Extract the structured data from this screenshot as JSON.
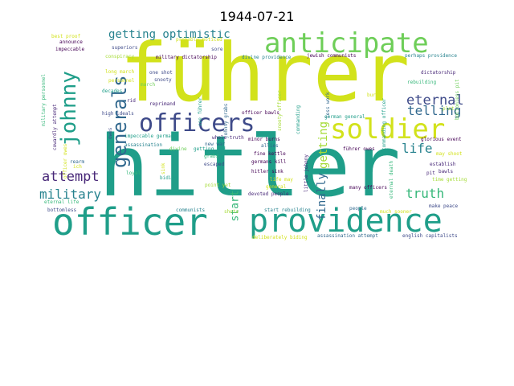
{
  "title": "1944-07-21",
  "colors": {
    "yellow": "#d2e21b",
    "lime": "#a5db36",
    "green": "#6ece58",
    "teal": "#35b779",
    "seagreen": "#1f9e89",
    "cyan": "#26828e",
    "blue": "#31688e",
    "indigo": "#3e4a89",
    "purple": "#482878",
    "dark": "#440154"
  },
  "words": [
    {
      "text": "hitler",
      "color": "seagreen"
    },
    {
      "text": "führer",
      "color": "yellow"
    },
    {
      "text": "officer",
      "color": "seagreen"
    },
    {
      "text": "providence",
      "color": "seagreen"
    },
    {
      "text": "anticipate",
      "color": "green"
    },
    {
      "text": "officers",
      "color": "indigo"
    },
    {
      "text": "soldier",
      "color": "yellow"
    },
    {
      "text": "johnny",
      "color": "seagreen"
    },
    {
      "text": "generals",
      "color": "blue"
    },
    {
      "text": "getting optimistic",
      "color": "cyan"
    },
    {
      "text": "eternal",
      "color": "indigo"
    },
    {
      "text": "telling",
      "color": "blue"
    },
    {
      "text": "life",
      "color": "cyan"
    },
    {
      "text": "truth",
      "color": "teal"
    },
    {
      "text": "attempt",
      "color": "purple"
    },
    {
      "text": "military",
      "color": "cyan"
    },
    {
      "text": "finally",
      "color": "blue"
    },
    {
      "text": "getting",
      "color": "lime"
    },
    {
      "text": "start",
      "color": "teal"
    },
    {
      "text": "best proof",
      "color": "yellow"
    },
    {
      "text": "probably noticed",
      "color": "yellow"
    },
    {
      "text": "impeccable",
      "color": "dark"
    },
    {
      "text": "superiors",
      "color": "indigo"
    },
    {
      "text": "conspiracy",
      "color": "lime"
    },
    {
      "text": "military dictatorship",
      "color": "dark"
    },
    {
      "text": "divine providence",
      "color": "cyan"
    },
    {
      "text": "jewish communists",
      "color": "dark"
    },
    {
      "text": "perhaps providence",
      "color": "cyan"
    },
    {
      "text": "one shot",
      "color": "indigo"
    },
    {
      "text": "snooty",
      "color": "indigo"
    },
    {
      "text": "long march",
      "color": "yellow"
    },
    {
      "text": "personnel",
      "color": "yellow"
    },
    {
      "text": "decades",
      "color": "seagreen"
    },
    {
      "text": "rid",
      "color": "purple"
    },
    {
      "text": "reprimand",
      "color": "purple"
    },
    {
      "text": "high ideals",
      "color": "indigo"
    },
    {
      "text": "officer bawls",
      "color": "dark"
    },
    {
      "text": "whole truth",
      "color": "purple"
    },
    {
      "text": "minor burns",
      "color": "dark"
    },
    {
      "text": "impeccable germans",
      "color": "seagreen"
    },
    {
      "text": "assassination",
      "color": "cyan"
    },
    {
      "text": "divine",
      "color": "green"
    },
    {
      "text": "getting rid",
      "color": "seagreen"
    },
    {
      "text": "allies",
      "color": "blue"
    },
    {
      "text": "fine kettle",
      "color": "dark"
    },
    {
      "text": "germans kill",
      "color": "dark"
    },
    {
      "text": "new war",
      "color": "blue"
    },
    {
      "text": "grabs",
      "color": "teal"
    },
    {
      "text": "escaped",
      "color": "indigo"
    },
    {
      "text": "loyal",
      "color": "teal"
    },
    {
      "text": "biding",
      "color": "seagreen"
    },
    {
      "text": "hitler sink",
      "color": "dark"
    },
    {
      "text": "devoted people",
      "color": "purple"
    },
    {
      "text": "point yet",
      "color": "lime"
    },
    {
      "text": "general",
      "color": "yellow"
    },
    {
      "text": "start rebuilding",
      "color": "cyan"
    },
    {
      "text": "communists",
      "color": "cyan"
    },
    {
      "text": "shots",
      "color": "lime"
    },
    {
      "text": "deliberately biding",
      "color": "yellow"
    },
    {
      "text": "assassination attempt",
      "color": "blue"
    },
    {
      "text": "english capitalists",
      "color": "indigo"
    },
    {
      "text": "make peace",
      "color": "indigo"
    },
    {
      "text": "much sooner",
      "color": "yellow"
    },
    {
      "text": "bottomless",
      "color": "indigo"
    },
    {
      "text": "eternal life",
      "color": "teal"
    },
    {
      "text": "announce",
      "color": "dark"
    },
    {
      "text": "rearm",
      "color": "blue"
    },
    {
      "text": "german general",
      "color": "seagreen"
    },
    {
      "text": "führer owes",
      "color": "dark"
    },
    {
      "text": "many officers",
      "color": "dark"
    },
    {
      "text": "little johnny",
      "color": "purple"
    },
    {
      "text": "may shoot",
      "color": "yellow"
    },
    {
      "text": "establish",
      "color": "purple"
    },
    {
      "text": "time getting",
      "color": "lime"
    },
    {
      "text": "bawls",
      "color": "purple"
    },
    {
      "text": "pit",
      "color": "purple"
    },
    {
      "text": "glorious event",
      "color": "dark"
    },
    {
      "text": "dictatorship",
      "color": "purple"
    },
    {
      "text": "rebuilding",
      "color": "teal"
    },
    {
      "text": "burns",
      "color": "yellow"
    },
    {
      "text": "less work",
      "color": "blue"
    },
    {
      "text": "commanding",
      "color": "seagreen"
    },
    {
      "text": "commanding officer",
      "color": "seagreen"
    },
    {
      "text": "eternal death",
      "color": "teal"
    },
    {
      "text": "snooty officer",
      "color": "lime"
    },
    {
      "text": "bottomless pit",
      "color": "green"
    },
    {
      "text": "military personnel",
      "color": "teal"
    },
    {
      "text": "cowardly attempt",
      "color": "purple"
    },
    {
      "text": "officer owes",
      "color": "yellow"
    },
    {
      "text": "sore",
      "color": "indigo"
    },
    {
      "text": "johnny grabs",
      "color": "blue"
    },
    {
      "text": "see führer",
      "color": "seagreen"
    },
    {
      "text": "sink",
      "color": "yellow"
    },
    {
      "text": "life may",
      "color": "yellow"
    },
    {
      "text": "owes",
      "color": "indigo"
    },
    {
      "text": "ich",
      "color": "yellow"
    },
    {
      "text": "people",
      "color": "blue"
    },
    {
      "text": "plot",
      "color": "lime"
    },
    {
      "text": "march",
      "color": "green"
    }
  ]
}
